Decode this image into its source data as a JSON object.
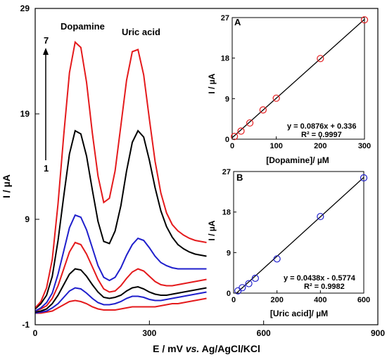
{
  "chart_data": [
    {
      "type": "line",
      "xlabel": "E / mV vs. Ag/AgCl/KCl",
      "ylabel": "I / µA",
      "xlim": [
        0,
        900
      ],
      "ylim": [
        -1,
        29
      ],
      "xticks": [
        "0",
        "300",
        "600",
        "900"
      ],
      "yticks": [
        "-1",
        "9",
        "19",
        "29"
      ],
      "annotations": {
        "peak1": "Dopamine",
        "peak2": "Uric acid",
        "arrow_top": "7",
        "arrow_bottom": "1"
      },
      "x": [
        0,
        15,
        30,
        45,
        60,
        75,
        90,
        105,
        120,
        135,
        150,
        165,
        180,
        195,
        210,
        225,
        240,
        255,
        270,
        285,
        300,
        315,
        330,
        345,
        360,
        375,
        390,
        405,
        420,
        435,
        450
      ],
      "series": [
        {
          "color": "#e41a1c",
          "values": [
            0.1,
            0.1,
            0.2,
            0.3,
            0.6,
            0.9,
            1.2,
            1.3,
            1.2,
            1.0,
            0.7,
            0.5,
            0.4,
            0.4,
            0.4,
            0.5,
            0.6,
            0.7,
            0.7,
            0.7,
            0.7,
            0.7,
            0.8,
            0.9,
            1.0,
            1.0,
            1.1,
            1.2,
            1.3,
            1.4,
            1.5
          ]
        },
        {
          "color": "#1f1fcc",
          "values": [
            0.1,
            0.2,
            0.3,
            0.6,
            1.0,
            1.6,
            2.2,
            2.5,
            2.4,
            2.0,
            1.5,
            1.1,
            0.9,
            0.9,
            1.0,
            1.2,
            1.5,
            1.7,
            1.7,
            1.6,
            1.4,
            1.3,
            1.3,
            1.4,
            1.5,
            1.6,
            1.7,
            1.8,
            1.9,
            2.0,
            2.1
          ]
        },
        {
          "color": "#000000",
          "values": [
            0.2,
            0.3,
            0.5,
            1.0,
            1.8,
            2.8,
            3.8,
            4.3,
            4.2,
            3.6,
            2.8,
            2.1,
            1.6,
            1.5,
            1.6,
            1.8,
            2.2,
            2.5,
            2.6,
            2.4,
            2.1,
            1.9,
            1.8,
            1.8,
            1.9,
            2.0,
            2.1,
            2.2,
            2.3,
            2.4,
            2.5
          ]
        },
        {
          "color": "#e41a1c",
          "values": [
            0.3,
            0.5,
            0.8,
            1.5,
            2.7,
            4.3,
            5.9,
            6.8,
            6.6,
            5.7,
            4.5,
            3.3,
            2.4,
            2.1,
            2.2,
            2.7,
            3.4,
            4.0,
            4.3,
            4.1,
            3.6,
            3.1,
            2.8,
            2.7,
            2.7,
            2.8,
            2.9,
            3.0,
            3.1,
            3.2,
            3.3
          ]
        },
        {
          "color": "#1f1fcc",
          "values": [
            0.3,
            0.6,
            1.1,
            2.0,
            3.8,
            6.0,
            8.2,
            9.4,
            9.2,
            8.0,
            6.3,
            4.6,
            3.5,
            3.2,
            3.5,
            4.4,
            5.6,
            6.6,
            7.2,
            7.0,
            6.3,
            5.5,
            4.9,
            4.6,
            4.4,
            4.3,
            4.3,
            4.3,
            4.3,
            4.3,
            4.3
          ]
        },
        {
          "color": "#000000",
          "values": [
            0.5,
            1.0,
            1.8,
            3.6,
            7.0,
            11.2,
            15.2,
            17.4,
            17.1,
            15.0,
            11.8,
            8.8,
            6.9,
            6.7,
            7.9,
            10.3,
            13.6,
            16.3,
            17.4,
            16.8,
            14.6,
            12.0,
            9.8,
            8.3,
            7.3,
            6.6,
            6.2,
            5.9,
            5.7,
            5.6,
            5.5
          ]
        },
        {
          "color": "#e41a1c",
          "values": [
            0.6,
            1.2,
            2.5,
            5.2,
            10.5,
            17.0,
            22.9,
            25.8,
            25.3,
            22.0,
            17.2,
            13.1,
            10.6,
            11.0,
            13.6,
            17.9,
            22.2,
            24.9,
            25.1,
            22.7,
            18.5,
            14.5,
            11.5,
            9.6,
            8.5,
            7.9,
            7.5,
            7.2,
            7.0,
            6.9,
            6.8
          ]
        }
      ]
    },
    {
      "type": "scatter",
      "panel_label": "A",
      "xlabel": "[Dopamine]/ µM",
      "ylabel": "I / µA",
      "xlim": [
        0,
        300
      ],
      "ylim": [
        0,
        27
      ],
      "xticks": [
        "0",
        "100",
        "200",
        "300"
      ],
      "yticks": [
        "0",
        "9",
        "18",
        "27"
      ],
      "marker_color": "#e41a1c",
      "points": [
        [
          5,
          0.6
        ],
        [
          20,
          1.8
        ],
        [
          40,
          3.6
        ],
        [
          70,
          6.5
        ],
        [
          100,
          9.1
        ],
        [
          200,
          17.9
        ],
        [
          300,
          26.5
        ]
      ],
      "fit": {
        "slope": 0.0876,
        "intercept": 0.336
      },
      "equation": "y = 0.0876x + 0.336",
      "r2": "R² = 0.9997"
    },
    {
      "type": "scatter",
      "panel_label": "B",
      "xlabel": "[Uric acid]/ µM",
      "ylabel": "I / µA",
      "xlim": [
        0,
        600
      ],
      "ylim": [
        0,
        27
      ],
      "xticks": [
        "0",
        "200",
        "400",
        "600"
      ],
      "yticks": [
        "0",
        "9",
        "18",
        "27"
      ],
      "marker_color": "#1f1fcc",
      "points": [
        [
          20,
          0.5
        ],
        [
          40,
          1.2
        ],
        [
          70,
          2.1
        ],
        [
          100,
          3.3
        ],
        [
          200,
          7.6
        ],
        [
          400,
          17.0
        ],
        [
          600,
          25.6
        ]
      ],
      "fit": {
        "slope": 0.0438,
        "intercept": -0.5774
      },
      "equation": "y = 0.0438x  - 0.5774",
      "r2": "R² = 0.9982"
    }
  ]
}
